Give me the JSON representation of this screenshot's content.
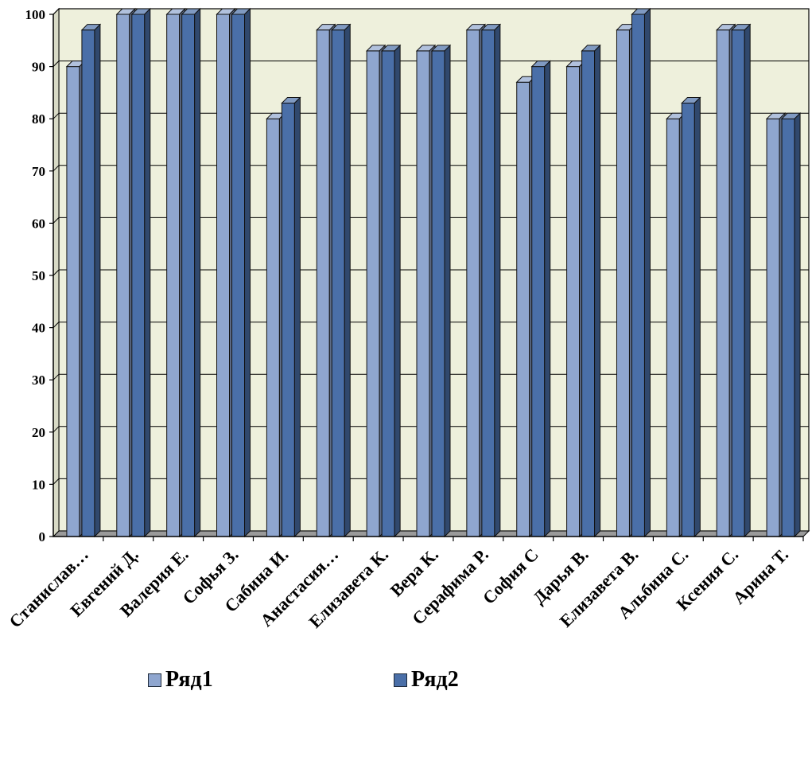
{
  "chart_data": {
    "type": "bar",
    "categories": [
      "Станислав…",
      "Евгений Д.",
      "Валерия Е.",
      "Софья З.",
      "Сабина И.",
      "Анастасия…",
      "Елизавета К.",
      "Вера К.",
      "Серафима Р.",
      "София С",
      "Дарья В.",
      "Елизавета В.",
      "Альбина С.",
      "Ксения С.",
      "Арина Т."
    ],
    "series": [
      {
        "name": "Ряд1",
        "values": [
          90,
          100,
          100,
          100,
          80,
          97,
          93,
          93,
          97,
          87,
          90,
          97,
          80,
          97,
          80
        ],
        "color": "#8fa6cf"
      },
      {
        "name": "Ряд2",
        "values": [
          97,
          100,
          100,
          100,
          83,
          97,
          93,
          93,
          97,
          90,
          93,
          100,
          83,
          97,
          80
        ],
        "color": "#4a6fa8"
      }
    ],
    "yticks": [
      "0",
      "10",
      "20",
      "30",
      "40",
      "50",
      "60",
      "70",
      "80",
      "90",
      "100"
    ],
    "ylim": [
      0,
      100
    ],
    "grid": true,
    "legend_position": "bottom",
    "plot_background": "#eef0dc"
  }
}
